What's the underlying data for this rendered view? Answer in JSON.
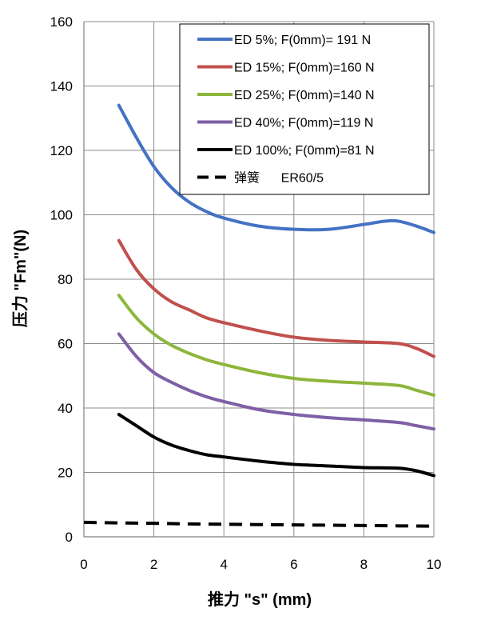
{
  "chart_data": {
    "type": "line",
    "xlabel": "推力 \"s\" (mm)",
    "ylabel": "压力 \"Fm\"(N)",
    "xlim": [
      0,
      10
    ],
    "ylim": [
      0,
      160
    ],
    "x_ticks": [
      0,
      2,
      4,
      6,
      8,
      10
    ],
    "y_ticks": [
      0,
      20,
      40,
      60,
      80,
      100,
      120,
      140,
      160
    ],
    "grid": true,
    "legend_position": "top-right",
    "series": [
      {
        "name": "ED 5%; F(0mm)= 191 N",
        "color": "#4472C4",
        "dash": "solid",
        "points": [
          [
            1,
            134
          ],
          [
            1.5,
            124
          ],
          [
            2,
            115
          ],
          [
            2.5,
            108.5
          ],
          [
            3,
            104
          ],
          [
            3.5,
            101
          ],
          [
            4,
            99
          ],
          [
            5,
            96.5
          ],
          [
            6,
            95.5
          ],
          [
            7,
            95.5
          ],
          [
            8,
            97
          ],
          [
            8.6,
            98
          ],
          [
            9,
            98
          ],
          [
            9.5,
            96.5
          ],
          [
            10,
            94.5
          ]
        ]
      },
      {
        "name": "ED 15%; F(0mm)=160 N",
        "color": "#C0504D",
        "dash": "solid",
        "points": [
          [
            1,
            92
          ],
          [
            1.5,
            83
          ],
          [
            2,
            77
          ],
          [
            2.5,
            73
          ],
          [
            3,
            70.5
          ],
          [
            3.5,
            68
          ],
          [
            4,
            66.5
          ],
          [
            5,
            64
          ],
          [
            6,
            62
          ],
          [
            7,
            61
          ],
          [
            8,
            60.5
          ],
          [
            9,
            60
          ],
          [
            9.5,
            58.5
          ],
          [
            10,
            56
          ]
        ]
      },
      {
        "name": "ED 25%; F(0mm)=140 N",
        "color": "#8DB63C",
        "dash": "solid",
        "points": [
          [
            1,
            75
          ],
          [
            1.5,
            68
          ],
          [
            2,
            63
          ],
          [
            2.5,
            59.5
          ],
          [
            3,
            57
          ],
          [
            3.5,
            55
          ],
          [
            4,
            53.5
          ],
          [
            5,
            51
          ],
          [
            6,
            49.2
          ],
          [
            7,
            48.3
          ],
          [
            8,
            47.7
          ],
          [
            9,
            47
          ],
          [
            9.5,
            45.5
          ],
          [
            10,
            44
          ]
        ]
      },
      {
        "name": "ED 40%; F(0mm)=119 N",
        "color": "#7F5FA6",
        "dash": "solid",
        "points": [
          [
            1,
            63
          ],
          [
            1.5,
            56
          ],
          [
            2,
            51
          ],
          [
            2.5,
            48
          ],
          [
            3,
            45.5
          ],
          [
            3.5,
            43.5
          ],
          [
            4,
            42
          ],
          [
            5,
            39.5
          ],
          [
            6,
            38
          ],
          [
            7,
            37
          ],
          [
            8,
            36.3
          ],
          [
            9,
            35.5
          ],
          [
            9.5,
            34.5
          ],
          [
            10,
            33.5
          ]
        ]
      },
      {
        "name": "ED 100%; F(0mm)=81 N",
        "color": "#000000",
        "dash": "solid",
        "points": [
          [
            1,
            38
          ],
          [
            1.5,
            34.5
          ],
          [
            2,
            31
          ],
          [
            2.5,
            28.5
          ],
          [
            3,
            26.8
          ],
          [
            3.5,
            25.5
          ],
          [
            4,
            24.8
          ],
          [
            5,
            23.5
          ],
          [
            6,
            22.5
          ],
          [
            7,
            22
          ],
          [
            8,
            21.5
          ],
          [
            9,
            21.3
          ],
          [
            9.5,
            20.5
          ],
          [
            10,
            19
          ]
        ]
      },
      {
        "name": "弹簧      ER60/5",
        "color": "#000000",
        "dash": "dashed",
        "points": [
          [
            0,
            4.5
          ],
          [
            1,
            4.3
          ],
          [
            2,
            4.2
          ],
          [
            3,
            4.0
          ],
          [
            4,
            3.9
          ],
          [
            5,
            3.8
          ],
          [
            6,
            3.7
          ],
          [
            7,
            3.6
          ],
          [
            8,
            3.5
          ],
          [
            9,
            3.4
          ],
          [
            10,
            3.3
          ]
        ]
      }
    ]
  }
}
